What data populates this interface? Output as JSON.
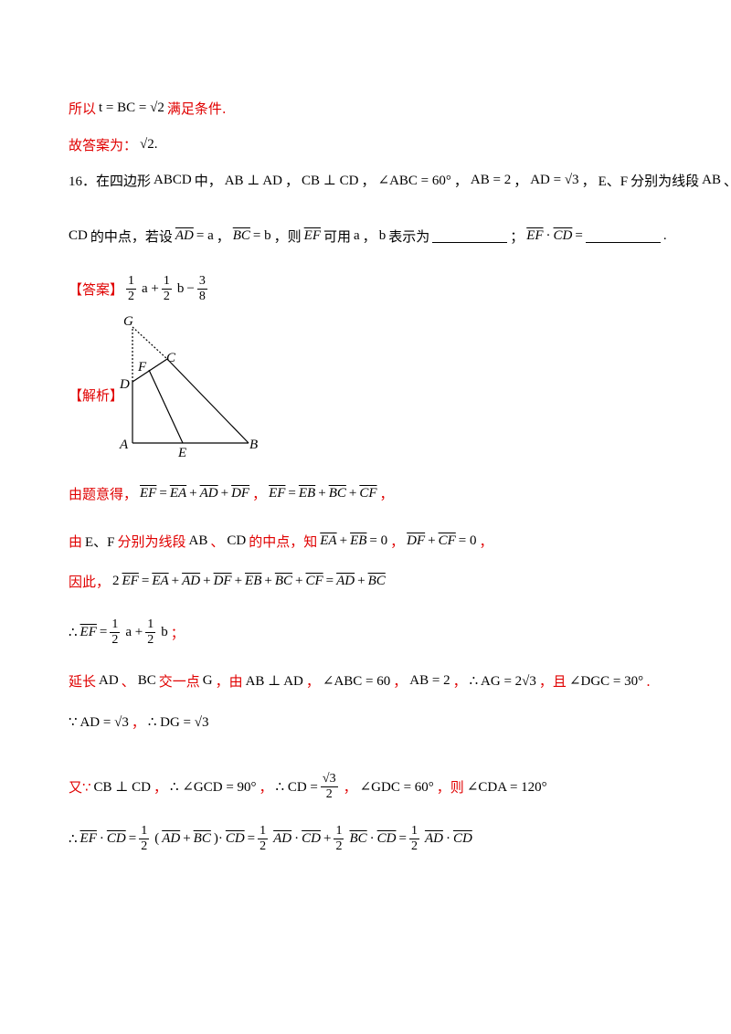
{
  "lines": [
    [
      "所以",
      "t = BC = √2",
      "满足条件."
    ],
    [
      "故答案为：",
      "√2."
    ],
    [
      "16．在四边形",
      "ABCD",
      "中，",
      "AB ⊥ AD",
      "，",
      "CB ⊥ CD",
      "，",
      "∠ABC = 60°",
      "，",
      "AB = 2",
      "，",
      "AD = √3",
      "，",
      "E、F",
      "分别为线段",
      "AB",
      "、"
    ],
    [
      "CD",
      "的中点，若设",
      "AD",
      "= a",
      "，",
      "BC",
      "= b",
      "，则",
      "EF",
      "可用",
      "a",
      "，",
      "b",
      "表示为",
      "；",
      "EF",
      "·",
      "CD",
      "=",
      "."
    ],
    [
      "【答案】",
      {
        "num": "1",
        "den": "2"
      },
      "a +",
      {
        "num": "1",
        "den": "2"
      },
      "b",
      "−",
      {
        "num": "3",
        "den": "8"
      }
    ],
    [
      "【解析】"
    ],
    [
      "由题意得，",
      "EF",
      "=",
      "EA",
      "+",
      "AD",
      "+",
      "DF",
      "，",
      "EF",
      "=",
      "EB",
      "+",
      "BC",
      "+",
      "CF",
      "，"
    ],
    [
      "由",
      "E、F",
      "分别为线段",
      "AB",
      "、",
      "CD",
      "的中点，知",
      "EA",
      "+",
      "EB",
      "= 0",
      "，",
      "DF",
      "+",
      "CF",
      "= 0",
      "，"
    ],
    [
      "因此，",
      "2",
      "EF",
      "=",
      "EA",
      "+",
      "AD",
      "+",
      "DF",
      "+",
      "EB",
      "+",
      "BC",
      "+",
      "CF",
      "=",
      "AD",
      "+",
      "BC"
    ],
    [
      "∴",
      "EF",
      "=",
      {
        "num": "1",
        "den": "2"
      },
      "a +",
      {
        "num": "1",
        "den": "2"
      },
      "b",
      "；"
    ],
    [
      "延长",
      "AD",
      "、",
      "BC",
      "交一点",
      "G",
      "，由",
      "AB ⊥ AD",
      "，",
      "∠ABC = 60",
      "，",
      "AB = 2",
      "，",
      "∴ AG = 2√3",
      "，且",
      "∠DGC = 30°",
      "."
    ],
    [
      "∵ AD = √3",
      "，",
      "∴ DG = √3"
    ],
    [
      "又∵",
      "CB ⊥ CD",
      "，",
      "∴ ∠GCD = 90°",
      "，",
      "∴ CD =",
      {
        "num": "√3",
        "den": "2"
      },
      "，",
      "∠GDC = 60°",
      "，则",
      "∠CDA = 120°"
    ],
    [
      "∴",
      "EF",
      "·",
      "CD",
      "=",
      {
        "num": "1",
        "den": "2"
      },
      "(",
      "AD",
      "+",
      "BC",
      ")·",
      "CD",
      "=",
      {
        "num": "1",
        "den": "2"
      },
      "AD",
      "·",
      "CD",
      "+",
      {
        "num": "1",
        "den": "2"
      },
      "BC",
      "·",
      "CD",
      "=",
      {
        "num": "1",
        "den": "2"
      },
      "AD",
      "·",
      "CD"
    ]
  ],
  "figure": {
    "labels": [
      "G",
      "C",
      "D",
      "F",
      "A",
      "E",
      "B"
    ]
  }
}
